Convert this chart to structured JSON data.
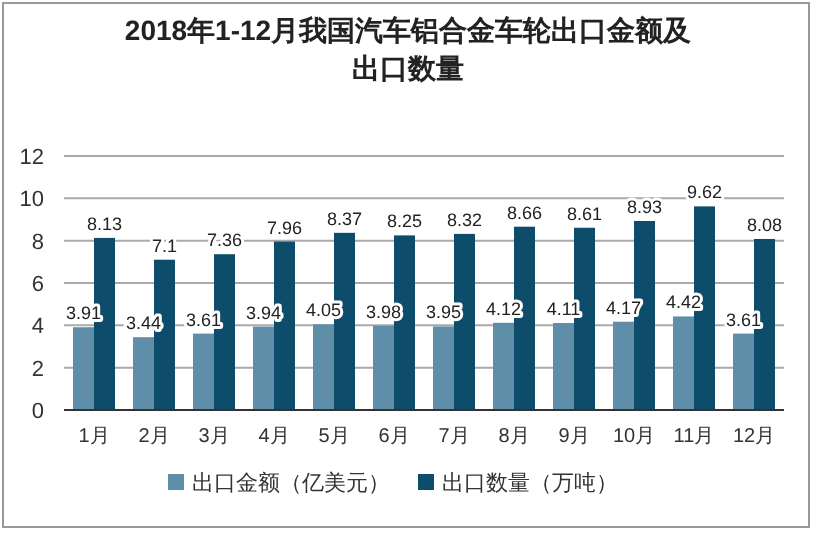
{
  "chart_data": {
    "type": "bar",
    "title": "2018年1-12月我国汽车铝合金车轮出口金额及出口数量",
    "categories": [
      "1月",
      "2月",
      "3月",
      "4月",
      "5月",
      "6月",
      "7月",
      "8月",
      "9月",
      "10月",
      "11月",
      "12月"
    ],
    "series": [
      {
        "name": "出口金额（亿美元）",
        "color": "#5f8ea8",
        "values": [
          3.91,
          3.44,
          3.61,
          3.94,
          4.05,
          3.98,
          3.95,
          4.12,
          4.11,
          4.17,
          4.42,
          3.61
        ]
      },
      {
        "name": "出口数量（万吨）",
        "color": "#0d4d6b",
        "values": [
          8.13,
          7.1,
          7.36,
          7.96,
          8.37,
          8.25,
          8.32,
          8.66,
          8.61,
          8.93,
          9.62,
          8.08
        ]
      }
    ],
    "ylim": [
      0,
      12
    ],
    "yticks": [
      0,
      2,
      4,
      6,
      8,
      10,
      12
    ],
    "grid": "y",
    "legend": "bottom",
    "data_labels": true
  }
}
